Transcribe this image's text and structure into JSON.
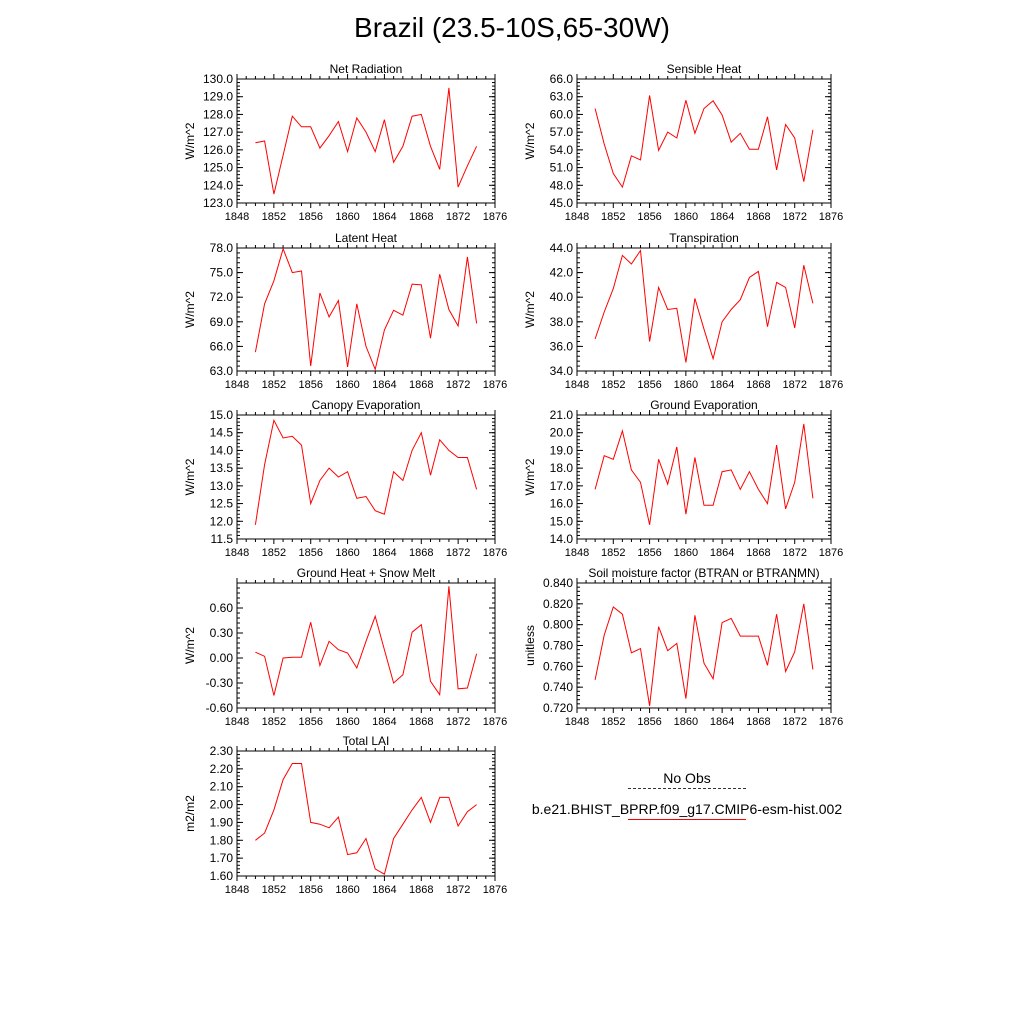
{
  "figure": {
    "title": "Brazil (23.5-10S,65-30W)"
  },
  "colors": {
    "model_line": "#ff0000",
    "obs_line": "#333333",
    "axis": "#000000"
  },
  "legend": {
    "obs_label": "No Obs",
    "model_label": "b.e21.BHIST_BPRP.f09_g17.CMIP6-esm-hist.002"
  },
  "chart_data": [
    {
      "type": "line",
      "title": "Net Radiation",
      "ylabel": "W/m^2",
      "xlim": [
        1848,
        1876
      ],
      "xticks": [
        1848,
        1852,
        1856,
        1860,
        1864,
        1868,
        1872,
        1876
      ],
      "ylim": [
        123.0,
        130.0
      ],
      "yticks": [
        "123.0",
        "124.0",
        "125.0",
        "126.0",
        "127.0",
        "128.0",
        "129.0",
        "130.0"
      ],
      "x": [
        1850,
        1851,
        1852,
        1853,
        1854,
        1855,
        1856,
        1857,
        1858,
        1859,
        1860,
        1861,
        1862,
        1863,
        1864,
        1865,
        1866,
        1867,
        1868,
        1869,
        1870,
        1871,
        1872,
        1873,
        1874
      ],
      "series": [
        {
          "values": [
            126.4,
            126.5,
            123.5,
            125.7,
            127.9,
            127.3,
            127.3,
            126.1,
            126.8,
            127.6,
            125.9,
            127.8,
            127.0,
            125.9,
            127.7,
            125.3,
            126.2,
            127.9,
            128.0,
            126.2,
            124.9,
            129.5,
            123.9,
            125.1,
            126.2
          ]
        }
      ]
    },
    {
      "type": "line",
      "title": "Sensible Heat",
      "ylabel": "W/m^2",
      "xlim": [
        1848,
        1876
      ],
      "xticks": [
        1848,
        1852,
        1856,
        1860,
        1864,
        1868,
        1872,
        1876
      ],
      "ylim": [
        45.0,
        66.0
      ],
      "yticks": [
        "45.0",
        "48.0",
        "51.0",
        "54.0",
        "57.0",
        "60.0",
        "63.0",
        "66.0"
      ],
      "x": [
        1850,
        1851,
        1852,
        1853,
        1854,
        1855,
        1856,
        1857,
        1858,
        1859,
        1860,
        1861,
        1862,
        1863,
        1864,
        1865,
        1866,
        1867,
        1868,
        1869,
        1870,
        1871,
        1872,
        1873,
        1874
      ],
      "series": [
        {
          "values": [
            61.0,
            55.0,
            50.0,
            47.7,
            53.0,
            52.3,
            63.2,
            53.9,
            57.0,
            56.0,
            62.4,
            56.8,
            61.0,
            62.3,
            59.9,
            55.3,
            56.8,
            54.1,
            54.1,
            59.6,
            50.6,
            58.3,
            56.0,
            48.6,
            57.4
          ]
        }
      ]
    },
    {
      "type": "line",
      "title": "Latent Heat",
      "ylabel": "W/m^2",
      "xlim": [
        1848,
        1876
      ],
      "xticks": [
        1848,
        1852,
        1856,
        1860,
        1864,
        1868,
        1872,
        1876
      ],
      "ylim": [
        63.0,
        78.0
      ],
      "yticks": [
        "63.0",
        "66.0",
        "69.0",
        "72.0",
        "75.0",
        "78.0"
      ],
      "x": [
        1850,
        1851,
        1852,
        1853,
        1854,
        1855,
        1856,
        1857,
        1858,
        1859,
        1860,
        1861,
        1862,
        1863,
        1864,
        1865,
        1866,
        1867,
        1868,
        1869,
        1870,
        1871,
        1872,
        1873,
        1874
      ],
      "series": [
        {
          "values": [
            65.3,
            71.2,
            74.0,
            77.9,
            75.0,
            75.2,
            63.6,
            72.5,
            69.6,
            71.6,
            63.5,
            71.2,
            66.0,
            63.2,
            68.0,
            70.4,
            69.8,
            73.6,
            73.5,
            67.0,
            74.8,
            70.5,
            68.5,
            76.9,
            68.8
          ]
        }
      ]
    },
    {
      "type": "line",
      "title": "Transpiration",
      "ylabel": "W/m^2",
      "xlim": [
        1848,
        1876
      ],
      "xticks": [
        1848,
        1852,
        1856,
        1860,
        1864,
        1868,
        1872,
        1876
      ],
      "ylim": [
        34.0,
        44.0
      ],
      "yticks": [
        "34.0",
        "36.0",
        "38.0",
        "40.0",
        "42.0",
        "44.0"
      ],
      "x": [
        1850,
        1851,
        1852,
        1853,
        1854,
        1855,
        1856,
        1857,
        1858,
        1859,
        1860,
        1861,
        1862,
        1863,
        1864,
        1865,
        1866,
        1867,
        1868,
        1869,
        1870,
        1871,
        1872,
        1873,
        1874
      ],
      "series": [
        {
          "values": [
            36.6,
            38.8,
            40.7,
            43.4,
            42.7,
            43.8,
            36.4,
            40.8,
            39.0,
            39.1,
            34.7,
            39.9,
            37.4,
            35.0,
            38.0,
            39.0,
            39.8,
            41.6,
            42.1,
            37.6,
            41.2,
            40.8,
            37.5,
            42.6,
            39.5
          ]
        }
      ]
    },
    {
      "type": "line",
      "title": "Canopy Evaporation",
      "ylabel": "W/m^2",
      "xlim": [
        1848,
        1876
      ],
      "xticks": [
        1848,
        1852,
        1856,
        1860,
        1864,
        1868,
        1872,
        1876
      ],
      "ylim": [
        11.5,
        15.0
      ],
      "yticks": [
        "11.5",
        "12.0",
        "12.5",
        "13.0",
        "13.5",
        "14.0",
        "14.5",
        "15.0"
      ],
      "x": [
        1850,
        1851,
        1852,
        1853,
        1854,
        1855,
        1856,
        1857,
        1858,
        1859,
        1860,
        1861,
        1862,
        1863,
        1864,
        1865,
        1866,
        1867,
        1868,
        1869,
        1870,
        1871,
        1872,
        1873,
        1874
      ],
      "series": [
        {
          "values": [
            11.9,
            13.6,
            14.85,
            14.35,
            14.4,
            14.15,
            12.5,
            13.15,
            13.5,
            13.25,
            13.4,
            12.65,
            12.7,
            12.3,
            12.2,
            13.4,
            13.15,
            14.0,
            14.5,
            13.3,
            14.3,
            14.0,
            13.8,
            13.8,
            12.9
          ]
        }
      ]
    },
    {
      "type": "line",
      "title": "Ground Evaporation",
      "ylabel": "W/m^2",
      "xlim": [
        1848,
        1876
      ],
      "xticks": [
        1848,
        1852,
        1856,
        1860,
        1864,
        1868,
        1872,
        1876
      ],
      "ylim": [
        14.0,
        21.0
      ],
      "yticks": [
        "14.0",
        "15.0",
        "16.0",
        "17.0",
        "18.0",
        "19.0",
        "20.0",
        "21.0"
      ],
      "x": [
        1850,
        1851,
        1852,
        1853,
        1854,
        1855,
        1856,
        1857,
        1858,
        1859,
        1860,
        1861,
        1862,
        1863,
        1864,
        1865,
        1866,
        1867,
        1868,
        1869,
        1870,
        1871,
        1872,
        1873,
        1874
      ],
      "series": [
        {
          "values": [
            16.8,
            18.7,
            18.5,
            20.1,
            17.9,
            17.2,
            14.8,
            18.5,
            17.1,
            19.2,
            15.4,
            18.6,
            15.9,
            15.9,
            17.8,
            17.9,
            16.8,
            17.8,
            16.8,
            16.0,
            19.3,
            15.7,
            17.2,
            20.5,
            16.3
          ]
        }
      ]
    },
    {
      "type": "line",
      "title": "Ground Heat + Snow Melt",
      "ylabel": "W/m^2",
      "xlim": [
        1848,
        1876
      ],
      "xticks": [
        1848,
        1852,
        1856,
        1860,
        1864,
        1868,
        1872,
        1876
      ],
      "ylim": [
        -0.6,
        0.9
      ],
      "yticks": [
        "-0.60",
        "-0.30",
        "0.00",
        "0.30",
        "0.60"
      ],
      "x": [
        1850,
        1851,
        1852,
        1853,
        1854,
        1855,
        1856,
        1857,
        1858,
        1859,
        1860,
        1861,
        1862,
        1863,
        1864,
        1865,
        1866,
        1867,
        1868,
        1869,
        1870,
        1871,
        1872,
        1873,
        1874
      ],
      "series": [
        {
          "values": [
            0.07,
            0.02,
            -0.45,
            0.0,
            0.01,
            0.01,
            0.43,
            -0.09,
            0.2,
            0.1,
            0.06,
            -0.12,
            0.2,
            0.5,
            0.1,
            -0.3,
            -0.2,
            0.31,
            0.4,
            -0.28,
            -0.44,
            0.86,
            -0.37,
            -0.36,
            0.05
          ]
        }
      ]
    },
    {
      "type": "line",
      "title": "Soil moisture factor (BTRAN or BTRANMN)",
      "ylabel": "unitless",
      "xlim": [
        1848,
        1876
      ],
      "xticks": [
        1848,
        1852,
        1856,
        1860,
        1864,
        1868,
        1872,
        1876
      ],
      "ylim": [
        0.72,
        0.84
      ],
      "yticks": [
        "0.720",
        "0.740",
        "0.760",
        "0.780",
        "0.800",
        "0.820",
        "0.840"
      ],
      "x": [
        1850,
        1851,
        1852,
        1853,
        1854,
        1855,
        1856,
        1857,
        1858,
        1859,
        1860,
        1861,
        1862,
        1863,
        1864,
        1865,
        1866,
        1867,
        1868,
        1869,
        1870,
        1871,
        1872,
        1873,
        1874
      ],
      "series": [
        {
          "values": [
            0.747,
            0.79,
            0.817,
            0.81,
            0.773,
            0.777,
            0.722,
            0.798,
            0.775,
            0.782,
            0.729,
            0.809,
            0.763,
            0.748,
            0.802,
            0.806,
            0.789,
            0.789,
            0.789,
            0.761,
            0.81,
            0.755,
            0.774,
            0.82,
            0.757
          ]
        }
      ]
    },
    {
      "type": "line",
      "title": "Total LAI",
      "ylabel": "m2/m2",
      "xlim": [
        1848,
        1876
      ],
      "xticks": [
        1848,
        1852,
        1856,
        1860,
        1864,
        1868,
        1872,
        1876
      ],
      "ylim": [
        1.6,
        2.3
      ],
      "yticks": [
        "1.60",
        "1.70",
        "1.80",
        "1.90",
        "2.00",
        "2.10",
        "2.20",
        "2.30"
      ],
      "x": [
        1850,
        1851,
        1852,
        1853,
        1854,
        1855,
        1856,
        1857,
        1858,
        1859,
        1860,
        1861,
        1862,
        1863,
        1864,
        1865,
        1866,
        1867,
        1868,
        1869,
        1870,
        1871,
        1872,
        1873,
        1874
      ],
      "series": [
        {
          "values": [
            1.8,
            1.84,
            1.97,
            2.14,
            2.23,
            2.23,
            1.9,
            1.89,
            1.87,
            1.93,
            1.72,
            1.73,
            1.81,
            1.64,
            1.61,
            1.81,
            1.89,
            1.97,
            2.04,
            1.9,
            2.04,
            2.04,
            1.88,
            1.96,
            2.0
          ]
        }
      ]
    }
  ]
}
